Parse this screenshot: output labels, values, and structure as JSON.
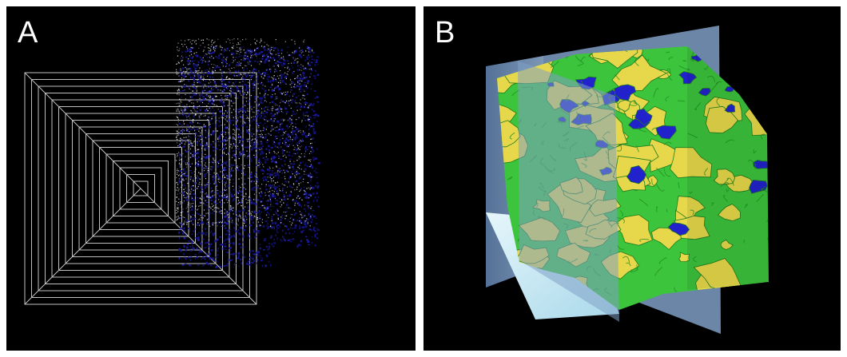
{
  "panels": [
    {
      "label": "A"
    },
    {
      "label": "B"
    }
  ],
  "colors": {
    "background": "#000000",
    "frame": "#ffffff",
    "wire": "#bfbfbf",
    "points_blue": "#1a1aa8",
    "points_white": "#e6e6e6",
    "surface_green": "#3cc43c",
    "surface_yellow": "#e6d84a",
    "surface_blue": "#2222cc",
    "plane_blue": "#6f8fb8",
    "plane_light": "#c9e8f2"
  }
}
